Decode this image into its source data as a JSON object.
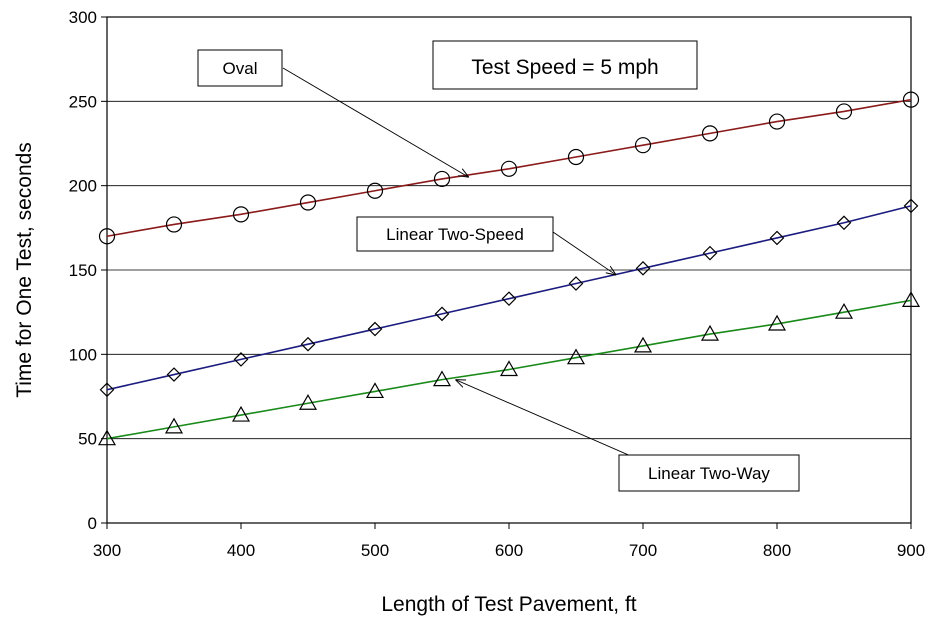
{
  "chart_data": {
    "type": "line",
    "title": "Test Speed = 5 mph",
    "xlabel": "Length of Test Pavement, ft",
    "ylabel": "Time for One Test, seconds",
    "xlim": [
      300,
      900
    ],
    "ylim": [
      0,
      300
    ],
    "x_ticks": [
      "300",
      "400",
      "500",
      "600",
      "700",
      "800",
      "900"
    ],
    "y_ticks": [
      "0",
      "50",
      "100",
      "150",
      "200",
      "250",
      "300"
    ],
    "grid": "horizontal",
    "x": [
      300,
      350,
      400,
      450,
      500,
      550,
      600,
      650,
      700,
      750,
      800,
      850,
      900
    ],
    "series": [
      {
        "name": "Oval",
        "color": "#8b1a1a",
        "marker": "circle",
        "values": [
          170,
          177,
          183,
          190,
          197,
          204,
          210,
          217,
          224,
          231,
          238,
          244,
          251
        ]
      },
      {
        "name": "Linear Two-Speed",
        "color": "#1c1c80",
        "marker": "diamond",
        "values": [
          79,
          88,
          97,
          106,
          115,
          124,
          133,
          142,
          151,
          160,
          169,
          178,
          188
        ]
      },
      {
        "name": "Linear Two-Way",
        "color": "#1a8a1a",
        "marker": "triangle",
        "values": [
          50,
          57,
          64,
          71,
          78,
          85,
          91,
          98,
          105,
          112,
          118,
          125,
          132
        ]
      }
    ],
    "annotations": [
      {
        "text": "Oval",
        "series": 0,
        "points_to_x": 570,
        "points_to_y": 205
      },
      {
        "text": "Linear Two-Speed",
        "series": 1,
        "points_to_x": 680,
        "points_to_y": 147
      },
      {
        "text": "Linear Two-Way",
        "series": 2,
        "points_to_x": 560,
        "points_to_y": 85
      }
    ]
  }
}
